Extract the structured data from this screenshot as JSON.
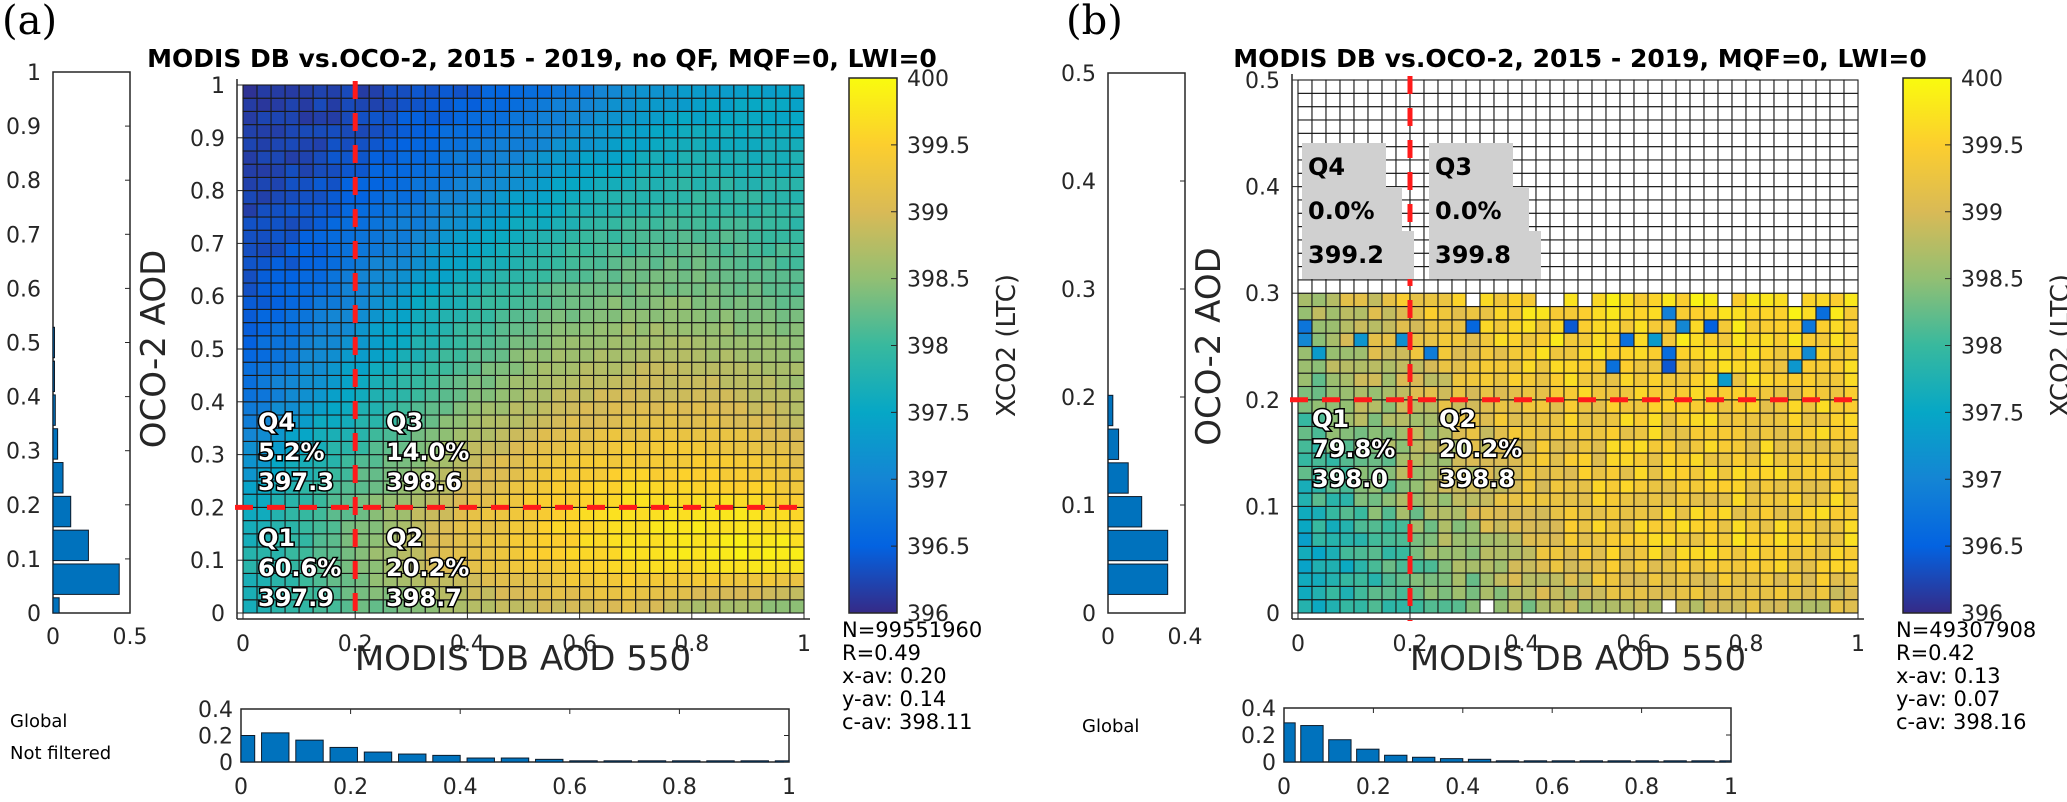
{
  "colors": {
    "hist_bar": "#0072BD",
    "divider": "#ff1a1a",
    "frame": "#262626",
    "qbox_bg": "#d0d0d0"
  },
  "colormap": {
    "name": "parula",
    "stops": [
      "#352a87",
      "#0363e1",
      "#1485d4",
      "#06a7c6",
      "#38b99e",
      "#92bf73",
      "#d9ba56",
      "#fcce2e",
      "#f9fb0e"
    ]
  },
  "chart_data": [
    {
      "panel": "(a)",
      "type": "heatmap",
      "title": "MODIS DB vs.OCO-2, 2015 - 2019, no QF, MQF=0, LWI=0",
      "xlabel": "MODIS DB AOD 550",
      "ylabel": "OCO-2 AOD",
      "xlim": [
        0,
        1
      ],
      "ylim": [
        0,
        1
      ],
      "xticks": [
        "0",
        "0.2",
        "0.4",
        "0.6",
        "0.8",
        "1"
      ],
      "yticks": [
        "0",
        "0.1",
        "0.2",
        "0.3",
        "0.4",
        "0.5",
        "0.6",
        "0.7",
        "0.8",
        "0.9",
        "1"
      ],
      "grid_cells": 40,
      "divider_x": 0.2,
      "divider_y": 0.2,
      "colorbar": {
        "label": "XCO2 (LTC)",
        "range": [
          396,
          400
        ],
        "ticks": [
          "396",
          "396.5",
          "397",
          "397.5",
          "398",
          "398.5",
          "399",
          "399.5",
          "400"
        ]
      },
      "coarse_grid_note": "estimated XCO2, rows from y=0 (bottom) to y=1 (top), columns x=0..1",
      "coarse_grid": [
        [
          397.6,
          397.9,
          398.2,
          398.4,
          398.6,
          398.8,
          398.9,
          399.0,
          398.6,
          398.4,
          398.2
        ],
        [
          397.8,
          398.0,
          398.4,
          398.8,
          399.2,
          399.4,
          399.6,
          399.7,
          399.8,
          399.9,
          399.9
        ],
        [
          397.5,
          397.9,
          398.3,
          398.7,
          399.1,
          399.4,
          399.6,
          399.7,
          399.7,
          399.7,
          399.5
        ],
        [
          397.1,
          397.6,
          398.0,
          398.4,
          398.8,
          399.1,
          399.3,
          399.4,
          399.4,
          399.3,
          399.1
        ],
        [
          396.7,
          397.2,
          397.6,
          398.0,
          398.4,
          398.7,
          398.9,
          399.0,
          399.0,
          398.9,
          398.7
        ],
        [
          396.5,
          396.9,
          397.3,
          397.7,
          398.1,
          398.4,
          398.6,
          398.7,
          398.7,
          398.6,
          398.5
        ],
        [
          396.4,
          396.6,
          397.0,
          397.4,
          397.8,
          398.1,
          398.3,
          398.4,
          398.4,
          398.3,
          398.2
        ],
        [
          396.3,
          396.4,
          396.7,
          397.0,
          397.4,
          397.7,
          398.0,
          398.1,
          398.2,
          398.1,
          398.0
        ],
        [
          396.2,
          396.3,
          396.5,
          396.7,
          397.0,
          397.3,
          397.6,
          397.8,
          397.9,
          397.9,
          397.8
        ],
        [
          396.2,
          396.2,
          396.3,
          396.5,
          396.7,
          396.9,
          397.2,
          397.4,
          397.6,
          397.6,
          397.6
        ],
        [
          396.1,
          396.2,
          396.2,
          396.3,
          396.4,
          396.6,
          396.8,
          397.1,
          397.3,
          397.4,
          397.4
        ]
      ],
      "valid_y_max": 1.0,
      "quadrants": [
        {
          "id": "Q4",
          "label": "Q4",
          "percent": "5.2%",
          "xco2": "397.3"
        },
        {
          "id": "Q3",
          "label": "Q3",
          "percent": "14.0%",
          "xco2": "398.6"
        },
        {
          "id": "Q1",
          "label": "Q1",
          "percent": "60.6%",
          "xco2": "397.9"
        },
        {
          "id": "Q2",
          "label": "Q2",
          "percent": "20.2%",
          "xco2": "398.7"
        }
      ],
      "side_hist": {
        "xlim": [
          0,
          0.5
        ],
        "xticks": [
          "0",
          "0.5"
        ],
        "ylim": [
          0,
          1
        ],
        "yticks": [
          "0",
          "0.1",
          "0.2",
          "0.3",
          "0.4",
          "0.5",
          "0.6",
          "0.7",
          "0.8",
          "0.9",
          "1"
        ],
        "bins": [
          0.0,
          0.0625,
          0.125,
          0.1875,
          0.25,
          0.3125,
          0.375,
          0.4375,
          0.5
        ],
        "values": [
          0.04,
          0.43,
          0.23,
          0.115,
          0.065,
          0.03,
          0.015,
          0.008,
          0.005
        ]
      },
      "bottom_hist": {
        "label_lines": [
          "Global",
          "Not filtered"
        ],
        "ylim": [
          0,
          0.4
        ],
        "yticks": [
          "0",
          "0.2",
          "0.4"
        ],
        "xlim": [
          0,
          1
        ],
        "xticks": [
          "0",
          "0.2",
          "0.4",
          "0.6",
          "0.8",
          "1"
        ],
        "bins": [
          0.0,
          0.0625,
          0.125,
          0.1875,
          0.25,
          0.3125,
          0.375,
          0.4375,
          0.5,
          0.5625,
          0.625,
          0.6875,
          0.75,
          0.8125,
          0.875,
          0.9375,
          1.0
        ],
        "values": [
          0.2,
          0.22,
          0.165,
          0.11,
          0.075,
          0.06,
          0.05,
          0.03,
          0.03,
          0.02,
          0.006,
          0.006,
          0.002,
          0.002,
          0.002,
          0.002,
          0.005
        ]
      },
      "stats": [
        "N=99551960",
        "R=0.49",
        "x-av: 0.20",
        "y-av: 0.14",
        "c-av: 398.11"
      ]
    },
    {
      "panel": "(b)",
      "type": "heatmap",
      "title": "MODIS DB vs.OCO-2, 2015 - 2019, MQF=0, LWI=0",
      "xlabel": "MODIS DB AOD 550",
      "ylabel": "OCO-2 AOD",
      "xlim": [
        0,
        1
      ],
      "ylim": [
        0,
        0.5
      ],
      "xticks": [
        "0",
        "0.2",
        "0.4",
        "0.6",
        "0.8",
        "1"
      ],
      "yticks": [
        "0",
        "0.1",
        "0.2",
        "0.3",
        "0.4",
        "0.5"
      ],
      "grid_cells": 40,
      "divider_x": 0.2,
      "divider_y": 0.2,
      "colorbar": {
        "label": "XCO2 (LTC)",
        "range": [
          396,
          400
        ],
        "ticks": [
          "396",
          "396.5",
          "397",
          "397.5",
          "398",
          "398.5",
          "399",
          "399.5",
          "400"
        ]
      },
      "coarse_grid_note": "estimated XCO2, rows from y=0 (bottom) to y=0.3 (top), columns x=0..1; cells above y=0.3 are empty",
      "coarse_grid": [
        [
          397.6,
          397.9,
          398.1,
          398.3,
          398.5,
          398.7,
          398.8,
          398.9,
          398.9,
          398.9,
          398.9
        ],
        [
          397.4,
          397.8,
          398.2,
          398.6,
          399.0,
          399.3,
          399.4,
          399.4,
          399.5,
          399.5,
          399.5
        ],
        [
          397.8,
          398.1,
          398.5,
          398.8,
          399.1,
          399.3,
          399.4,
          399.4,
          399.4,
          399.4,
          399.4
        ],
        [
          398.0,
          398.3,
          398.6,
          398.9,
          399.2,
          399.3,
          399.4,
          399.4,
          399.4,
          399.4,
          399.4
        ],
        [
          398.3,
          398.6,
          398.9,
          399.1,
          399.3,
          399.4,
          399.4,
          399.4,
          399.4,
          399.4,
          399.4
        ],
        [
          398.5,
          398.8,
          399.1,
          399.3,
          399.5,
          399.6,
          399.6,
          399.6,
          399.6,
          399.6,
          399.6
        ],
        [
          398.6,
          399.0,
          399.3,
          399.5,
          399.7,
          399.7,
          399.7,
          399.7,
          399.7,
          399.7,
          399.7
        ]
      ],
      "valid_y_max": 0.3,
      "quadrants": [
        {
          "id": "Q4",
          "label": "Q4",
          "percent": "0.0%",
          "xco2": "399.2"
        },
        {
          "id": "Q3",
          "label": "Q3",
          "percent": "0.0%",
          "xco2": "399.8"
        },
        {
          "id": "Q1",
          "label": "Q1",
          "percent": "79.8%",
          "xco2": "398.0"
        },
        {
          "id": "Q2",
          "label": "Q2",
          "percent": "20.2%",
          "xco2": "398.8"
        }
      ],
      "side_hist": {
        "xlim": [
          0,
          0.4
        ],
        "xticks": [
          "0",
          "0.4"
        ],
        "ylim": [
          0,
          0.5
        ],
        "yticks": [
          "0",
          "0.1",
          "0.2",
          "0.3",
          "0.4",
          "0.5"
        ],
        "bins": [
          0.0,
          0.03125,
          0.0625,
          0.09375,
          0.125,
          0.15625,
          0.1875
        ],
        "values": [
          0.0,
          0.31,
          0.31,
          0.175,
          0.105,
          0.055,
          0.025
        ]
      },
      "bottom_hist": {
        "label_lines": [
          "Global"
        ],
        "ylim": [
          0,
          0.4
        ],
        "yticks": [
          "0",
          "0.2",
          "0.4"
        ],
        "xlim": [
          0,
          1
        ],
        "xticks": [
          "0",
          "0.2",
          "0.4",
          "0.6",
          "0.8",
          "1"
        ],
        "bins": [
          0.0,
          0.0625,
          0.125,
          0.1875,
          0.25,
          0.3125,
          0.375,
          0.4375,
          0.5,
          0.5625,
          0.625,
          0.6875,
          0.75,
          0.8125,
          0.875,
          0.9375,
          1.0
        ],
        "values": [
          0.29,
          0.27,
          0.165,
          0.095,
          0.05,
          0.035,
          0.025,
          0.02,
          0.008,
          0.001,
          0.001,
          0.001,
          0.001,
          0.001,
          0.001,
          0.001,
          0.001
        ]
      },
      "stats": [
        "N=49307908",
        "R=0.42",
        "x-av: 0.13",
        "y-av: 0.07",
        "c-av: 398.16"
      ]
    }
  ]
}
